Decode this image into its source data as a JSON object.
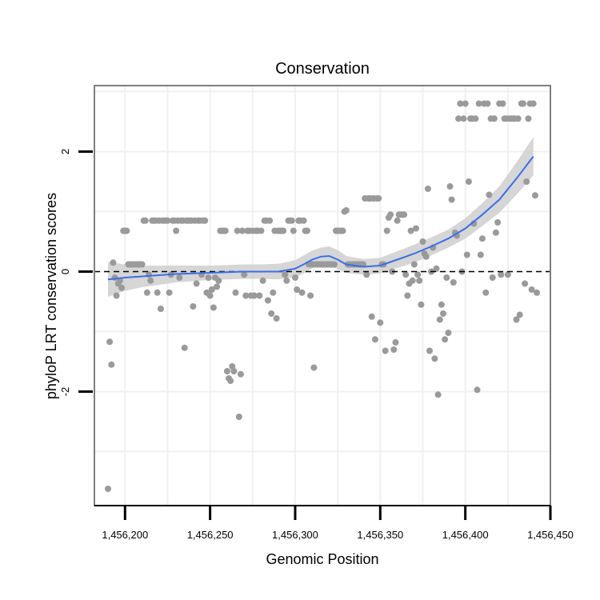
{
  "chart_data": {
    "type": "scatter",
    "title": "Conservation",
    "xlabel": "Genomic Position",
    "ylabel": "phyloP LRT conservation scores",
    "xlim": [
      1456182,
      1456450
    ],
    "ylim": [
      -3.9,
      3.1
    ],
    "x_ticks": [
      {
        "value": 1456200,
        "label": "1,456,200"
      },
      {
        "value": 1456250,
        "label": "1,456,250"
      },
      {
        "value": 1456300,
        "label": "1,456,300"
      },
      {
        "value": 1456350,
        "label": "1,456,350"
      },
      {
        "value": 1456400,
        "label": "1,456,400"
      },
      {
        "value": 1456450,
        "label": "1,456,450"
      }
    ],
    "y_ticks": [
      {
        "value": -2,
        "label": "-2"
      },
      {
        "value": 0,
        "label": "0"
      },
      {
        "value": 2,
        "label": "2"
      }
    ],
    "reference_line": {
      "y": 0,
      "style": "dashed"
    },
    "colors": {
      "points": "#9a9a9a",
      "smooth_line": "#3a6ee8",
      "confidence_band": "#cfcfcf",
      "panel_border": "#7f7f7f",
      "grid": "#f0f0f0"
    },
    "points": [
      [
        1456190,
        -3.62
      ],
      [
        1456191,
        -1.17
      ],
      [
        1456192,
        -1.55
      ],
      [
        1456193,
        0.15
      ],
      [
        1456194,
        -0.1
      ],
      [
        1456195,
        -0.4
      ],
      [
        1456196,
        -0.2
      ],
      [
        1456197,
        -0.15
      ],
      [
        1456198,
        -0.27
      ],
      [
        1456199,
        0.68
      ],
      [
        1456200,
        0.68
      ],
      [
        1456201,
        0.68
      ],
      [
        1456202,
        0.12
      ],
      [
        1456203,
        0.12
      ],
      [
        1456204,
        0.12
      ],
      [
        1456205,
        0.12
      ],
      [
        1456206,
        0.12
      ],
      [
        1456207,
        0.12
      ],
      [
        1456208,
        0.12
      ],
      [
        1456209,
        0.12
      ],
      [
        1456210,
        0.12
      ],
      [
        1456211,
        0.85
      ],
      [
        1456212,
        0.85
      ],
      [
        1456213,
        -0.35
      ],
      [
        1456214,
        -0.05
      ],
      [
        1456215,
        -0.15
      ],
      [
        1456216,
        0.85
      ],
      [
        1456217,
        0.85
      ],
      [
        1456218,
        0.85
      ],
      [
        1456219,
        -0.35
      ],
      [
        1456220,
        0.85
      ],
      [
        1456221,
        -0.62
      ],
      [
        1456222,
        0.85
      ],
      [
        1456223,
        0.85
      ],
      [
        1456224,
        0.85
      ],
      [
        1456225,
        0.85
      ],
      [
        1456226,
        -0.35
      ],
      [
        1456227,
        -0.05
      ],
      [
        1456228,
        0.85
      ],
      [
        1456229,
        0.85
      ],
      [
        1456230,
        0.68
      ],
      [
        1456231,
        0.85
      ],
      [
        1456232,
        -0.1
      ],
      [
        1456233,
        0.85
      ],
      [
        1456234,
        0.85
      ],
      [
        1456235,
        -1.27
      ],
      [
        1456236,
        0.85
      ],
      [
        1456237,
        0.85
      ],
      [
        1456238,
        0.85
      ],
      [
        1456239,
        0.85
      ],
      [
        1456240,
        -0.58
      ],
      [
        1456241,
        0.85
      ],
      [
        1456242,
        -0.2
      ],
      [
        1456243,
        0.85
      ],
      [
        1456244,
        0.85
      ],
      [
        1456245,
        -0.05
      ],
      [
        1456246,
        0.85
      ],
      [
        1456247,
        0.85
      ],
      [
        1456248,
        -0.35
      ],
      [
        1456249,
        -0.1
      ],
      [
        1456250,
        -0.4
      ],
      [
        1456251,
        -0.3
      ],
      [
        1456252,
        -0.6
      ],
      [
        1456253,
        -0.1
      ],
      [
        1456254,
        -0.25
      ],
      [
        1456255,
        -0.15
      ],
      [
        1456256,
        0.68
      ],
      [
        1456257,
        0.68
      ],
      [
        1456258,
        0.68
      ],
      [
        1456259,
        0.68
      ],
      [
        1456260,
        -1.66
      ],
      [
        1456261,
        -1.78
      ],
      [
        1456262,
        -1.82
      ],
      [
        1456263,
        -1.58
      ],
      [
        1456264,
        -1.66
      ],
      [
        1456265,
        -0.35
      ],
      [
        1456266,
        0.68
      ],
      [
        1456267,
        -2.42
      ],
      [
        1456268,
        -1.71
      ],
      [
        1456269,
        0.68
      ],
      [
        1456270,
        -0.05
      ],
      [
        1456271,
        -0.4
      ],
      [
        1456272,
        0.68
      ],
      [
        1456273,
        0.68
      ],
      [
        1456274,
        -0.4
      ],
      [
        1456275,
        0.68
      ],
      [
        1456276,
        -0.4
      ],
      [
        1456277,
        0.68
      ],
      [
        1456278,
        0.68
      ],
      [
        1456279,
        -0.4
      ],
      [
        1456280,
        0.68
      ],
      [
        1456281,
        -0.15
      ],
      [
        1456282,
        0.85
      ],
      [
        1456283,
        0.85
      ],
      [
        1456284,
        -0.48
      ],
      [
        1456285,
        0.85
      ],
      [
        1456286,
        -0.7
      ],
      [
        1456287,
        -0.35
      ],
      [
        1456288,
        0.68
      ],
      [
        1456289,
        -0.78
      ],
      [
        1456290,
        0.68
      ],
      [
        1456291,
        0.68
      ],
      [
        1456292,
        0.68
      ],
      [
        1456293,
        0.68
      ],
      [
        1456294,
        -0.05
      ],
      [
        1456295,
        -0.15
      ],
      [
        1456296,
        0.85
      ],
      [
        1456297,
        0.85
      ],
      [
        1456298,
        0.85
      ],
      [
        1456299,
        0.68
      ],
      [
        1456300,
        -0.1
      ],
      [
        1456301,
        -0.3
      ],
      [
        1456302,
        0.85
      ],
      [
        1456303,
        0.85
      ],
      [
        1456304,
        -0.35
      ],
      [
        1456305,
        0.85
      ],
      [
        1456306,
        0.68
      ],
      [
        1456307,
        0.68
      ],
      [
        1456308,
        0.12
      ],
      [
        1456309,
        -0.4
      ],
      [
        1456310,
        0.12
      ],
      [
        1456311,
        -1.6
      ],
      [
        1456312,
        0.12
      ],
      [
        1456313,
        0.12
      ],
      [
        1456314,
        0.12
      ],
      [
        1456315,
        0.12
      ],
      [
        1456316,
        0.12
      ],
      [
        1456317,
        0.12
      ],
      [
        1456318,
        0.12
      ],
      [
        1456319,
        0.12
      ],
      [
        1456320,
        0.12
      ],
      [
        1456321,
        0.12
      ],
      [
        1456322,
        0.12
      ],
      [
        1456323,
        0.12
      ],
      [
        1456324,
        0.68
      ],
      [
        1456325,
        0.68
      ],
      [
        1456326,
        0.68
      ],
      [
        1456327,
        0.68
      ],
      [
        1456328,
        0.68
      ],
      [
        1456329,
        1.0
      ],
      [
        1456330,
        1.02
      ],
      [
        1456331,
        0.12
      ],
      [
        1456332,
        0.12
      ],
      [
        1456333,
        0.12
      ],
      [
        1456334,
        0.12
      ],
      [
        1456335,
        0.12
      ],
      [
        1456336,
        0.12
      ],
      [
        1456337,
        0.12
      ],
      [
        1456338,
        0.12
      ],
      [
        1456339,
        0.12
      ],
      [
        1456340,
        0.12
      ],
      [
        1456341,
        1.22
      ],
      [
        1456342,
        -0.05
      ],
      [
        1456343,
        1.22
      ],
      [
        1456344,
        1.22
      ],
      [
        1456345,
        -0.75
      ],
      [
        1456346,
        1.22
      ],
      [
        1456347,
        -1.13
      ],
      [
        1456348,
        1.22
      ],
      [
        1456349,
        1.22
      ],
      [
        1456350,
        -0.85
      ],
      [
        1456351,
        0.12
      ],
      [
        1456352,
        0.12
      ],
      [
        1456353,
        -1.32
      ],
      [
        1456354,
        0.68
      ],
      [
        1456355,
        0.9
      ],
      [
        1456356,
        0.95
      ],
      [
        1456357,
        0.0
      ],
      [
        1456358,
        -1.3
      ],
      [
        1456359,
        -1.18
      ],
      [
        1456360,
        0.85
      ],
      [
        1456361,
        0.95
      ],
      [
        1456362,
        0.95
      ],
      [
        1456363,
        0.95
      ],
      [
        1456364,
        0.95
      ],
      [
        1456365,
        -0.05
      ],
      [
        1456366,
        -0.4
      ],
      [
        1456367,
        -0.2
      ],
      [
        1456368,
        0.68
      ],
      [
        1456369,
        -0.15
      ],
      [
        1456370,
        0.12
      ],
      [
        1456371,
        0.72
      ],
      [
        1456372,
        -0.05
      ],
      [
        1456373,
        -0.15
      ],
      [
        1456374,
        -0.55
      ],
      [
        1456375,
        0.5
      ],
      [
        1456376,
        0.3
      ],
      [
        1456377,
        0.25
      ],
      [
        1456378,
        1.38
      ],
      [
        1456379,
        -1.32
      ],
      [
        1456380,
        0.0
      ],
      [
        1456381,
        0.4
      ],
      [
        1456382,
        -1.45
      ],
      [
        1456383,
        0.05
      ],
      [
        1456384,
        -2.05
      ],
      [
        1456385,
        -0.8
      ],
      [
        1456386,
        -0.55
      ],
      [
        1456387,
        -0.7
      ],
      [
        1456388,
        -1.13
      ],
      [
        1456389,
        -0.1
      ],
      [
        1456390,
        -1.02
      ],
      [
        1456391,
        1.42
      ],
      [
        1456392,
        1.2
      ],
      [
        1456393,
        -0.18
      ],
      [
        1456394,
        0.65
      ],
      [
        1456395,
        0.6
      ],
      [
        1456396,
        2.55
      ],
      [
        1456397,
        2.8
      ],
      [
        1456398,
        0.0
      ],
      [
        1456399,
        2.55
      ],
      [
        1456400,
        2.8
      ],
      [
        1456401,
        0.28
      ],
      [
        1456402,
        1.5
      ],
      [
        1456403,
        2.55
      ],
      [
        1456404,
        2.55
      ],
      [
        1456405,
        0.8
      ],
      [
        1456406,
        2.55
      ],
      [
        1456407,
        -1.97
      ],
      [
        1456408,
        2.8
      ],
      [
        1456409,
        0.28
      ],
      [
        1456410,
        0.55
      ],
      [
        1456411,
        2.8
      ],
      [
        1456412,
        -0.35
      ],
      [
        1456413,
        2.8
      ],
      [
        1456414,
        1.28
      ],
      [
        1456415,
        2.55
      ],
      [
        1456416,
        -0.1
      ],
      [
        1456417,
        2.55
      ],
      [
        1456418,
        0.65
      ],
      [
        1456419,
        0.82
      ],
      [
        1456420,
        2.8
      ],
      [
        1456421,
        -0.05
      ],
      [
        1456422,
        2.8
      ],
      [
        1456423,
        2.55
      ],
      [
        1456424,
        2.55
      ],
      [
        1456425,
        -0.05
      ],
      [
        1456426,
        2.55
      ],
      [
        1456427,
        2.55
      ],
      [
        1456428,
        2.55
      ],
      [
        1456429,
        2.55
      ],
      [
        1456430,
        -0.8
      ],
      [
        1456431,
        2.55
      ],
      [
        1456432,
        -0.72
      ],
      [
        1456433,
        2.8
      ],
      [
        1456434,
        2.8
      ],
      [
        1456435,
        -0.2
      ],
      [
        1456436,
        1.5
      ],
      [
        1456437,
        2.55
      ],
      [
        1456438,
        2.8
      ],
      [
        1456439,
        -0.3
      ],
      [
        1456440,
        2.8
      ],
      [
        1456441,
        1.27
      ],
      [
        1456442,
        -0.35
      ]
    ],
    "smooth": {
      "x": [
        1456190,
        1456200,
        1456210,
        1456220,
        1456230,
        1456240,
        1456250,
        1456260,
        1456270,
        1456280,
        1456290,
        1456300,
        1456305,
        1456310,
        1456315,
        1456320,
        1456325,
        1456330,
        1456340,
        1456350,
        1456360,
        1456370,
        1456380,
        1456390,
        1456400,
        1456410,
        1456420,
        1456430,
        1456440
      ],
      "y": [
        -0.13,
        -0.1,
        -0.08,
        -0.06,
        -0.04,
        -0.03,
        -0.02,
        -0.01,
        0.0,
        0.0,
        0.0,
        0.05,
        0.12,
        0.2,
        0.25,
        0.26,
        0.2,
        0.12,
        0.08,
        0.1,
        0.2,
        0.3,
        0.42,
        0.55,
        0.72,
        0.95,
        1.2,
        1.55,
        1.92
      ],
      "lower": [
        -0.42,
        -0.32,
        -0.26,
        -0.22,
        -0.18,
        -0.16,
        -0.14,
        -0.13,
        -0.12,
        -0.12,
        -0.13,
        -0.09,
        -0.03,
        0.05,
        0.1,
        0.1,
        0.04,
        -0.02,
        -0.05,
        -0.03,
        0.06,
        0.15,
        0.27,
        0.4,
        0.55,
        0.76,
        0.98,
        1.28,
        1.6
      ],
      "upper": [
        0.16,
        0.12,
        0.1,
        0.1,
        0.1,
        0.1,
        0.1,
        0.11,
        0.12,
        0.12,
        0.13,
        0.19,
        0.27,
        0.35,
        0.4,
        0.42,
        0.36,
        0.26,
        0.21,
        0.23,
        0.34,
        0.45,
        0.57,
        0.7,
        0.89,
        1.14,
        1.42,
        1.82,
        2.24
      ]
    }
  }
}
